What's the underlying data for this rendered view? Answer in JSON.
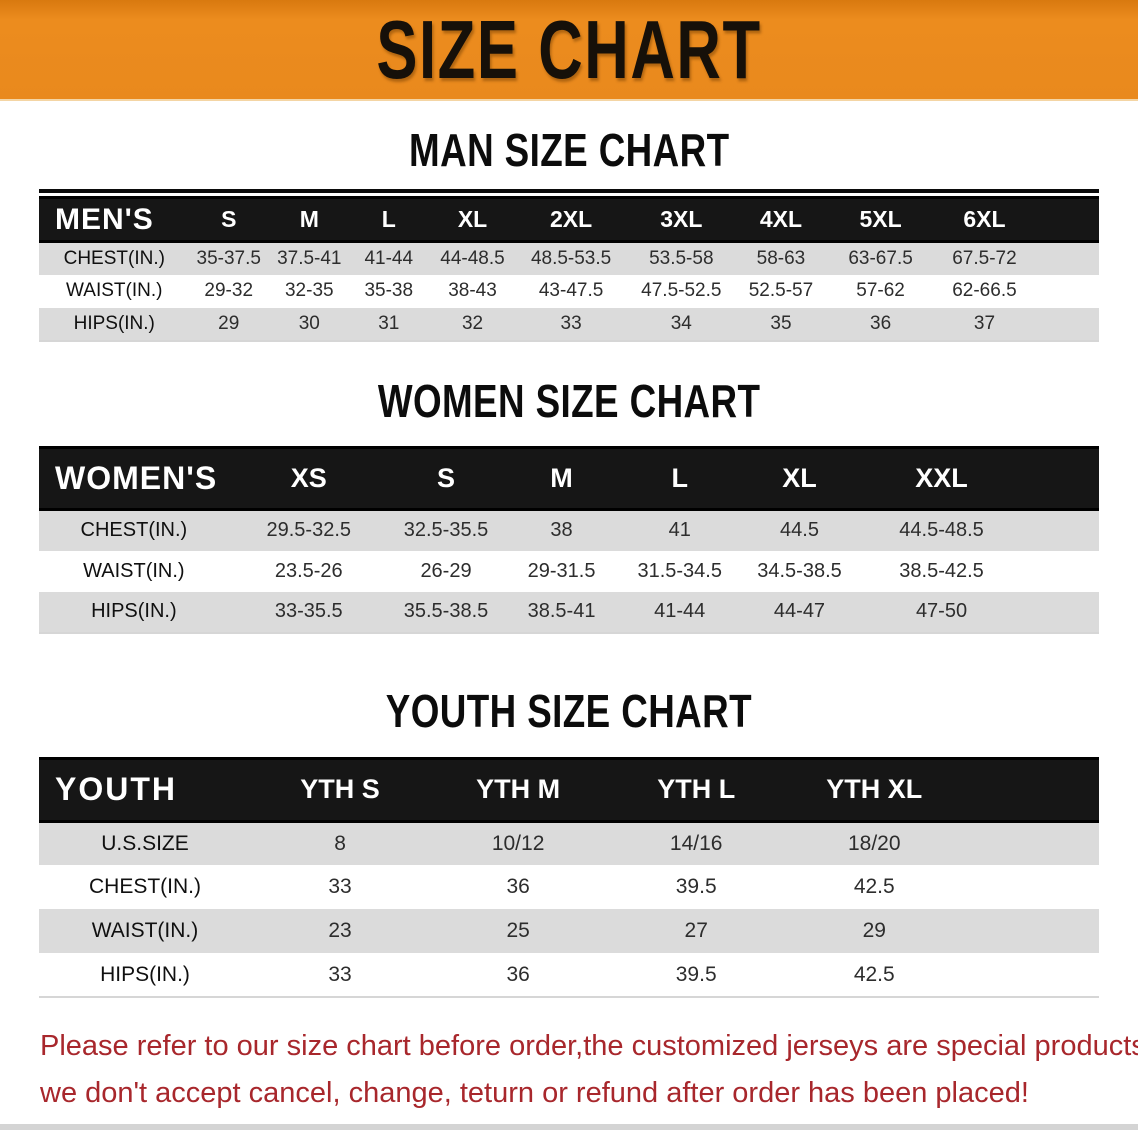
{
  "banner": {
    "title": "SIZE CHART",
    "bg_color": "#EC8C1E",
    "text_color": "#161009"
  },
  "colors": {
    "header_black": "#161616",
    "row_gray": "#DBDBDB",
    "row_white": "#FFFFFF",
    "disclaimer_red": "#A8272C"
  },
  "sections": [
    {
      "heading": "MAN SIZE CHART",
      "table": {
        "label": "MEN'S",
        "columns": [
          "S",
          "M",
          "L",
          "XL",
          "2XL",
          "3XL",
          "4XL",
          "5XL",
          "6XL"
        ],
        "rows": [
          {
            "label": "CHEST(IN.)",
            "values": [
              "35-37.5",
              "37.5-41",
              "41-44",
              "44-48.5",
              "48.5-53.5",
              "53.5-58",
              "58-63",
              "63-67.5",
              "67.5-72"
            ]
          },
          {
            "label": "WAIST(IN.)",
            "values": [
              "29-32",
              "32-35",
              "35-38",
              "38-43",
              "43-47.5",
              "47.5-52.5",
              "52.5-57",
              "57-62",
              "62-66.5"
            ]
          },
          {
            "label": "HIPS(IN.)",
            "values": [
              "29",
              "30",
              "31",
              "32",
              "33",
              "34",
              "35",
              "36",
              "37"
            ]
          }
        ]
      }
    },
    {
      "heading": "WOMEN SIZE CHART",
      "table": {
        "label": "WOMEN'S",
        "columns": [
          "XS",
          "S",
          "M",
          "L",
          "XL",
          "XXL"
        ],
        "rows": [
          {
            "label": "CHEST(IN.)",
            "values": [
              "29.5-32.5",
              "32.5-35.5",
              "38",
              "41",
              "44.5",
              "44.5-48.5"
            ]
          },
          {
            "label": "WAIST(IN.)",
            "values": [
              "23.5-26",
              "26-29",
              "29-31.5",
              "31.5-34.5",
              "34.5-38.5",
              "38.5-42.5"
            ]
          },
          {
            "label": "HIPS(IN.)",
            "values": [
              "33-35.5",
              "35.5-38.5",
              "38.5-41",
              "41-44",
              "44-47",
              "47-50"
            ]
          }
        ]
      }
    },
    {
      "heading": "YOUTH SIZE CHART",
      "table": {
        "label": "YOUTH",
        "columns": [
          "YTH S",
          "YTH M",
          "YTH L",
          "YTH XL"
        ],
        "rows": [
          {
            "label": "U.S.SIZE",
            "values": [
              "8",
              "10/12",
              "14/16",
              "18/20"
            ]
          },
          {
            "label": "CHEST(IN.)",
            "values": [
              "33",
              "36",
              "39.5",
              "42.5"
            ]
          },
          {
            "label": "WAIST(IN.)",
            "values": [
              "23",
              "25",
              "27",
              "29"
            ]
          },
          {
            "label": "HIPS(IN.)",
            "values": [
              "33",
              "36",
              "39.5",
              "42.5"
            ]
          }
        ]
      }
    }
  ],
  "disclaimer": {
    "line1": "Please refer to our size chart before order,the customized jerseys are special products,",
    "line2": "we don't accept cancel, change, teturn or refund after order has been placed!"
  }
}
